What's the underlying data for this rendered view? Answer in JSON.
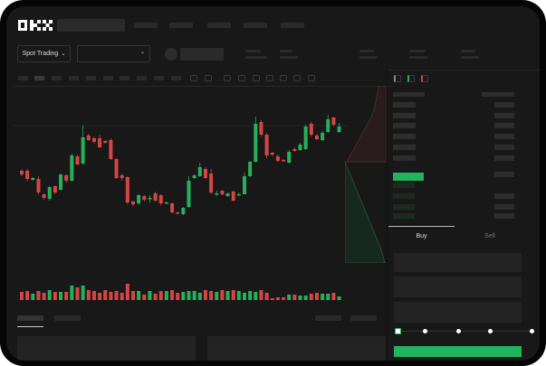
{
  "header": {
    "logo": "OKX"
  },
  "toolbar": {
    "market_select": "Spot Trading"
  },
  "order_form": {
    "tabs": [
      "Buy",
      "Sell"
    ],
    "active_tab": "Buy",
    "slider_value_percent": 0,
    "slider_steps": [
      0,
      25,
      50,
      75,
      100
    ]
  },
  "colors": {
    "up": "#26b05a",
    "down": "#d64545",
    "accent": "#22b35e",
    "background": "#181818"
  },
  "chart_data": {
    "type": "candlestick",
    "title": "",
    "candles": [
      [
        68,
        70,
        62,
        64
      ],
      [
        68,
        70,
        57,
        59
      ],
      [
        58,
        61,
        57,
        60
      ],
      [
        59,
        62,
        42,
        44
      ],
      [
        42,
        43,
        36,
        38
      ],
      [
        37,
        51,
        35,
        50
      ],
      [
        51,
        52,
        42,
        44
      ],
      [
        47,
        65,
        46,
        64
      ],
      [
        63,
        64,
        55,
        57
      ],
      [
        57,
        87,
        56,
        85
      ],
      [
        84,
        86,
        74,
        75
      ],
      [
        76,
        118,
        75,
        105
      ],
      [
        107,
        109,
        101,
        102
      ],
      [
        104,
        106,
        98,
        100
      ],
      [
        104,
        108,
        93,
        94
      ],
      [
        101,
        102,
        98,
        99
      ],
      [
        102,
        104,
        80,
        81
      ],
      [
        81,
        82,
        59,
        60
      ],
      [
        63,
        65,
        57,
        60
      ],
      [
        61,
        62,
        31,
        33
      ],
      [
        34,
        35,
        29,
        31
      ],
      [
        32,
        42,
        30,
        41
      ],
      [
        40,
        41,
        34,
        36
      ],
      [
        37,
        41,
        33,
        38
      ],
      [
        43,
        45,
        34,
        35
      ],
      [
        41,
        42,
        30,
        32
      ],
      [
        33,
        34,
        32,
        33
      ],
      [
        32,
        33,
        21,
        22
      ],
      [
        22,
        23,
        20,
        21
      ],
      [
        20,
        28,
        19,
        27
      ],
      [
        28,
        62,
        27,
        57
      ],
      [
        60,
        64,
        59,
        63
      ],
      [
        62,
        77,
        61,
        72
      ],
      [
        70,
        72,
        59,
        60
      ],
      [
        65,
        70,
        42,
        44
      ],
      [
        43,
        46,
        40,
        43
      ],
      [
        46,
        47,
        41,
        42
      ],
      [
        40,
        44,
        39,
        43
      ],
      [
        45,
        46,
        34,
        35
      ],
      [
        42,
        44,
        41,
        42
      ],
      [
        42,
        66,
        42,
        62
      ],
      [
        62,
        79,
        61,
        78
      ],
      [
        78,
        128,
        77,
        120
      ],
      [
        122,
        124,
        106,
        108
      ],
      [
        108,
        110,
        82,
        85
      ],
      [
        88,
        89,
        84,
        86
      ],
      [
        84,
        86,
        78,
        79
      ],
      [
        80,
        81,
        78,
        79
      ],
      [
        77,
        91,
        76,
        89
      ],
      [
        92,
        94,
        89,
        90
      ],
      [
        91,
        99,
        90,
        97
      ],
      [
        92,
        119,
        91,
        117
      ],
      [
        120,
        122,
        106,
        108
      ],
      [
        107,
        109,
        102,
        103
      ],
      [
        102,
        112,
        101,
        110
      ],
      [
        111,
        130,
        110,
        125
      ],
      [
        127,
        128,
        117,
        119
      ],
      [
        111,
        121,
        110,
        117
      ]
    ],
    "volumes": [
      9,
      10,
      7,
      10,
      8,
      11,
      9,
      9,
      9,
      16,
      14,
      16,
      11,
      10,
      8,
      11,
      9,
      10,
      8,
      18,
      10,
      10,
      6,
      10,
      7,
      10,
      10,
      11,
      8,
      9,
      10,
      10,
      8,
      11,
      10,
      9,
      11,
      10,
      11,
      10,
      8,
      10,
      9,
      11,
      8,
      2,
      3,
      3,
      6,
      6,
      5,
      5,
      7,
      8,
      7,
      7,
      8,
      4
    ],
    "depth": {
      "asks": [
        0.2,
        0.25,
        0.3,
        0.4,
        0.55,
        0.7,
        0.85,
        1.0
      ],
      "bids": [
        0.15,
        0.3,
        0.45,
        0.6,
        0.75,
        0.9,
        1.0
      ]
    }
  }
}
